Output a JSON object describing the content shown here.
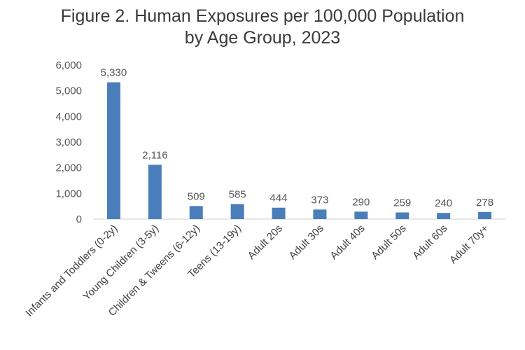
{
  "chart_data": {
    "type": "bar",
    "title_lines": [
      "Figure 2. Human Exposures per 100,000 Population",
      "by Age Group, 2023"
    ],
    "categories": [
      "Infants and Toddlers (0-2y)",
      "Young Children (3-5y)",
      "Children & Tweens (6-12y)",
      "Teens (13-19y)",
      "Adult 20s",
      "Adult 30s",
      "Adult 40s",
      "Adult 50s",
      "Adult 60s",
      "Adult 70y+"
    ],
    "values": [
      5330,
      2116,
      509,
      585,
      444,
      373,
      290,
      259,
      240,
      278
    ],
    "data_labels": [
      "5,330",
      "2,116",
      "509",
      "585",
      "444",
      "373",
      "290",
      "259",
      "240",
      "278"
    ],
    "ylim": [
      0,
      6000
    ],
    "yticks": [
      0,
      1000,
      2000,
      3000,
      4000,
      5000,
      6000
    ],
    "ytick_labels": [
      "0",
      "1,000",
      "2,000",
      "3,000",
      "4,000",
      "5,000",
      "6,000"
    ],
    "xlabel": "",
    "ylabel": "",
    "grid": false,
    "bar_color": "#4a7ebb"
  }
}
